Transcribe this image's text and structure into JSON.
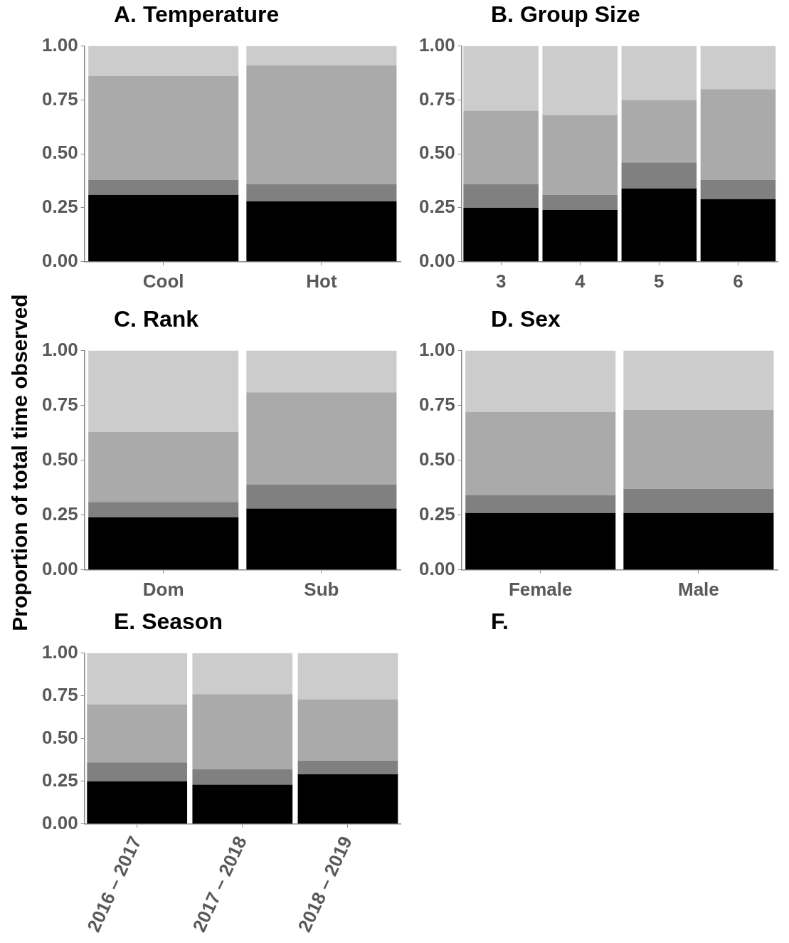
{
  "chart_data": [
    {
      "type": "bar",
      "title": "A. Temperature",
      "categories": [
        "Cool",
        "Hot"
      ],
      "stacked": true,
      "grid": false,
      "legend": false,
      "ylim": [
        0,
        1
      ],
      "yticks": [
        {
          "value": 0,
          "label": "0.00"
        },
        {
          "value": 0.25,
          "label": "0.25"
        },
        {
          "value": 0.5,
          "label": "0.50"
        },
        {
          "value": 0.75,
          "label": "0.75"
        },
        {
          "value": 1,
          "label": "1.00"
        }
      ],
      "series": [
        {
          "color": "#000000",
          "values": [
            0.31,
            0.28
          ]
        },
        {
          "color": "#808080",
          "values": [
            0.07,
            0.08
          ]
        },
        {
          "color": "#aaaaaa",
          "values": [
            0.48,
            0.55
          ]
        },
        {
          "color": "#cccccc",
          "values": [
            0.14,
            0.09
          ]
        }
      ]
    },
    {
      "type": "bar",
      "title": "B. Group Size",
      "categories": [
        "3",
        "4",
        "5",
        "6"
      ],
      "stacked": true,
      "grid": false,
      "legend": false,
      "ylim": [
        0,
        1
      ],
      "yticks": [
        {
          "value": 0,
          "label": "0.00"
        },
        {
          "value": 0.25,
          "label": "0.25"
        },
        {
          "value": 0.5,
          "label": "0.50"
        },
        {
          "value": 0.75,
          "label": "0.75"
        },
        {
          "value": 1,
          "label": "1.00"
        }
      ],
      "series": [
        {
          "color": "#000000",
          "values": [
            0.25,
            0.24,
            0.34,
            0.29
          ]
        },
        {
          "color": "#808080",
          "values": [
            0.11,
            0.07,
            0.12,
            0.09
          ]
        },
        {
          "color": "#aaaaaa",
          "values": [
            0.34,
            0.37,
            0.29,
            0.42
          ]
        },
        {
          "color": "#cccccc",
          "values": [
            0.3,
            0.32,
            0.25,
            0.2
          ]
        }
      ]
    },
    {
      "type": "bar",
      "title": "C. Rank",
      "ylabel": "Proportion of total time observed",
      "categories": [
        "Dom",
        "Sub"
      ],
      "stacked": true,
      "grid": false,
      "legend": false,
      "ylim": [
        0,
        1
      ],
      "yticks": [
        {
          "value": 0,
          "label": "0.00"
        },
        {
          "value": 0.25,
          "label": "0.25"
        },
        {
          "value": 0.5,
          "label": "0.50"
        },
        {
          "value": 0.75,
          "label": "0.75"
        },
        {
          "value": 1,
          "label": "1.00"
        }
      ],
      "series": [
        {
          "color": "#000000",
          "values": [
            0.24,
            0.28
          ]
        },
        {
          "color": "#808080",
          "values": [
            0.07,
            0.11
          ]
        },
        {
          "color": "#aaaaaa",
          "values": [
            0.32,
            0.42
          ]
        },
        {
          "color": "#cccccc",
          "values": [
            0.37,
            0.19
          ]
        }
      ]
    },
    {
      "type": "bar",
      "title": "D. Sex",
      "categories": [
        "Female",
        "Male"
      ],
      "stacked": true,
      "grid": false,
      "legend": false,
      "ylim": [
        0,
        1
      ],
      "yticks": [
        {
          "value": 0,
          "label": "0.00"
        },
        {
          "value": 0.25,
          "label": "0.25"
        },
        {
          "value": 0.5,
          "label": "0.50"
        },
        {
          "value": 0.75,
          "label": "0.75"
        },
        {
          "value": 1,
          "label": "1.00"
        }
      ],
      "series": [
        {
          "color": "#000000",
          "values": [
            0.26,
            0.26
          ]
        },
        {
          "color": "#808080",
          "values": [
            0.08,
            0.11
          ]
        },
        {
          "color": "#aaaaaa",
          "values": [
            0.38,
            0.36
          ]
        },
        {
          "color": "#cccccc",
          "values": [
            0.28,
            0.27
          ]
        }
      ]
    },
    {
      "type": "bar",
      "title": "E. Season",
      "categories": [
        "2016 – 2017",
        "2017 – 2018",
        "2018 – 2019"
      ],
      "stacked": true,
      "grid": false,
      "legend": false,
      "ylim": [
        0,
        1
      ],
      "yticks": [
        {
          "value": 0,
          "label": "0.00"
        },
        {
          "value": 0.25,
          "label": "0.25"
        },
        {
          "value": 0.5,
          "label": "0.50"
        },
        {
          "value": 0.75,
          "label": "0.75"
        },
        {
          "value": 1,
          "label": "1.00"
        }
      ],
      "series": [
        {
          "color": "#000000",
          "values": [
            0.25,
            0.23,
            0.29
          ]
        },
        {
          "color": "#808080",
          "values": [
            0.11,
            0.09,
            0.08
          ]
        },
        {
          "color": "#aaaaaa",
          "values": [
            0.34,
            0.44,
            0.36
          ]
        },
        {
          "color": "#cccccc",
          "values": [
            0.3,
            0.24,
            0.27
          ]
        }
      ]
    },
    {
      "type": "other",
      "title": "F."
    }
  ]
}
